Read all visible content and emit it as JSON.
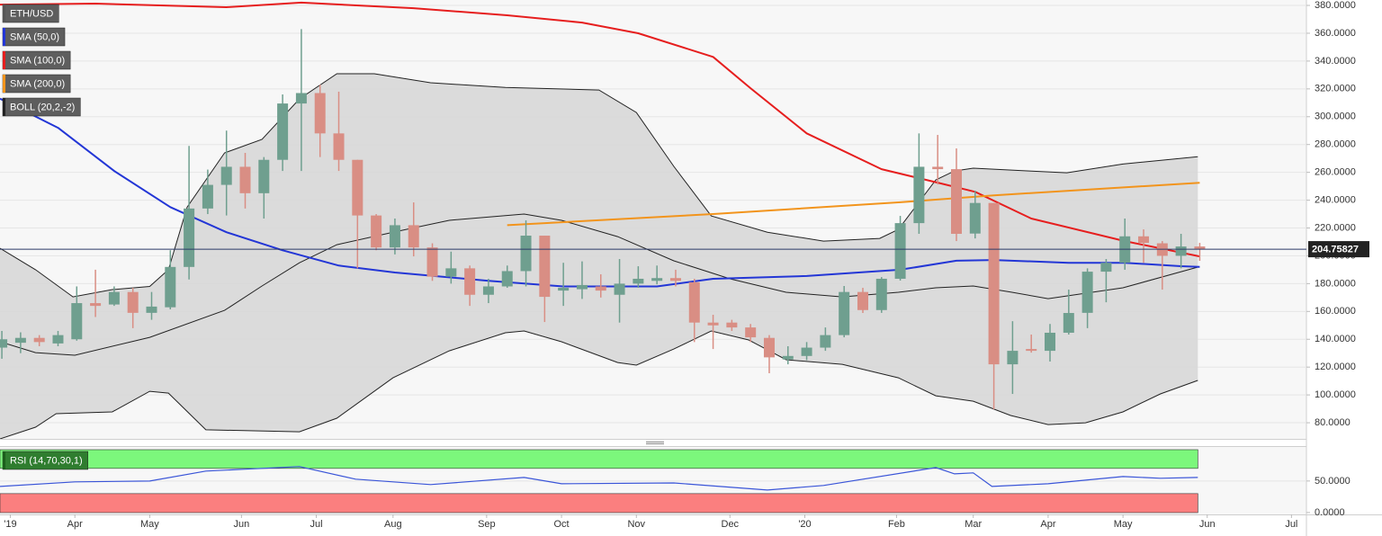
{
  "chart_data": [
    {
      "type": "candlestick",
      "xlim": [
        -0.1,
        69.7
      ],
      "ylim": [
        68.4,
        383.9
      ],
      "yticks": [
        {
          "value": 80,
          "label": "80.0000"
        },
        {
          "value": 100,
          "label": "100.0000"
        },
        {
          "value": 120,
          "label": "120.0000"
        },
        {
          "value": 140,
          "label": "140.0000"
        },
        {
          "value": 160,
          "label": "160.0000"
        },
        {
          "value": 180,
          "label": "180.0000"
        },
        {
          "value": 200,
          "label": "200.0000"
        },
        {
          "value": 220,
          "label": "220.0000"
        },
        {
          "value": 240,
          "label": "240.0000"
        },
        {
          "value": 260,
          "label": "260.0000"
        },
        {
          "value": 280,
          "label": "280.0000"
        },
        {
          "value": 300,
          "label": "300.0000"
        },
        {
          "value": 320,
          "label": "320.0000"
        },
        {
          "value": 340,
          "label": "340.0000"
        },
        {
          "value": 360,
          "label": "360.0000"
        },
        {
          "value": 380,
          "label": "380.0000"
        }
      ],
      "grid": true,
      "series": [
        {
          "name": "ETH/USD",
          "type": "candlestick",
          "color": "#555555",
          "up_color": "#6f9f8f",
          "down_color": "#d98e84",
          "open": [
            134,
            137.5,
            141,
            137,
            140,
            166,
            165,
            174,
            159,
            163,
            192,
            234,
            251,
            264,
            245,
            269,
            309.5,
            317,
            288,
            269,
            229,
            206,
            222,
            206,
            185,
            191,
            172,
            178,
            189,
            214.5,
            175,
            176,
            178,
            172,
            180,
            182,
            184,
            181,
            152,
            152,
            148.5,
            141,
            125.5,
            128,
            134,
            143,
            174,
            161,
            183.5,
            223.5,
            264,
            262.3,
            216,
            238,
            122,
            133,
            131.7,
            144.7,
            159,
            188.6,
            195,
            214,
            209,
            200,
            206.7
          ],
          "high": [
            146,
            145,
            143,
            146,
            178,
            190,
            178,
            177,
            174,
            204,
            279,
            262,
            290,
            274,
            271,
            316,
            363,
            323,
            318,
            269,
            230,
            226.8,
            238.4,
            209,
            203,
            193,
            183.5,
            193,
            225.5,
            214.5,
            195,
            196,
            186.7,
            197.7,
            192.5,
            193,
            190,
            183.5,
            157.6,
            154,
            151,
            143,
            135,
            138,
            148.5,
            178.3,
            177,
            184.7,
            228.7,
            288,
            286.9,
            277.2,
            246.8,
            238,
            153,
            143.4,
            151,
            175.7,
            191,
            197.7,
            226.8,
            219,
            210.6,
            215.8,
            209.3
          ],
          "low": [
            126,
            130,
            135,
            135,
            139,
            156,
            164,
            148,
            154,
            161.5,
            183,
            230,
            229,
            234,
            226.8,
            261,
            261,
            271,
            261,
            191,
            204,
            201,
            199.6,
            182,
            180,
            164,
            166,
            177,
            178,
            152.4,
            164,
            169,
            170,
            152,
            177,
            179.5,
            178,
            138,
            133,
            146,
            138,
            115.6,
            122,
            125,
            131.7,
            141.4,
            158.9,
            159,
            182.2,
            215.8,
            251.3,
            210.6,
            212.5,
            89.7,
            100.7,
            130.4,
            124,
            143.4,
            148,
            166.6,
            190,
            195,
            175.7,
            191,
            196.4
          ],
          "close": [
            140,
            141,
            138,
            143,
            166,
            164,
            174,
            159,
            163.5,
            192,
            234,
            251,
            264,
            245,
            269,
            309.5,
            317,
            288,
            269,
            229,
            206,
            222,
            206,
            185,
            191,
            172,
            178,
            189,
            214.5,
            170.5,
            177,
            179,
            175,
            180,
            183.5,
            184,
            182,
            152,
            150,
            148.5,
            141.4,
            127,
            128,
            134,
            143,
            174,
            161,
            183.5,
            223.5,
            264,
            262.3,
            215.8,
            238,
            122,
            131.7,
            131.7,
            144.7,
            158.9,
            188.6,
            195,
            214,
            209.3,
            200,
            206.7,
            204.75827
          ]
        },
        {
          "name": "SMA (50,0)",
          "type": "line",
          "color": "#2336d6",
          "x": [
            -0.1,
            3,
            6,
            9,
            12,
            15,
            18,
            21,
            26,
            30,
            35,
            38,
            43,
            48,
            51,
            53,
            57,
            60,
            63,
            64
          ],
          "values": [
            313,
            292,
            261,
            235,
            217,
            204,
            193,
            188,
            182,
            178,
            178,
            183.5,
            185.5,
            190,
            196.5,
            197,
            195,
            195,
            192.5,
            192
          ]
        },
        {
          "name": "SMA (100,0)",
          "type": "line",
          "color": "#e61e1e",
          "x": [
            -0.1,
            5,
            12,
            16,
            22,
            27,
            31,
            34,
            38,
            40,
            43,
            47,
            50,
            52,
            55,
            60,
            64
          ],
          "values": [
            380.6,
            381.3,
            378.7,
            382,
            378,
            372.9,
            367.7,
            360,
            343,
            320.5,
            288,
            262.3,
            252.6,
            246,
            226.8,
            210.6,
            199.6
          ]
        },
        {
          "name": "SMA (200,0)",
          "type": "line",
          "color": "#f2941c",
          "x": [
            27,
            38,
            48,
            53,
            64
          ],
          "values": [
            222,
            230,
            238.5,
            243.5,
            252.5
          ]
        },
        {
          "name": "BOLL (20,2,-2)",
          "type": "bollinger",
          "color": "#222222",
          "fill": "#d6d6d6",
          "upper": {
            "x": [
              -0.1,
              1.8,
              3.8,
              5.9,
              7.9,
              8.9,
              9.9,
              11.9,
              13.9,
              15.9,
              17.9,
              19.9,
              22.9,
              26.9,
              31.9,
              33.9,
              35.9,
              37.9,
              40.9,
              43.9,
              46.9,
              47.9,
              49.9,
              50.9,
              51.9,
              54.9,
              56.9,
              59.9,
              63.9
            ],
            "values": [
              205.4,
              190,
              170.5,
              175.7,
              178,
              190,
              235,
              274,
              283.7,
              312.8,
              330.9,
              330.9,
              324.4,
              321,
              319.2,
              303,
              264.3,
              228.7,
              217,
              210.6,
              212.5,
              219,
              254.6,
              261,
              263,
              261,
              259.7,
              266,
              271.3
            ]
          },
          "middle": {
            "x": [
              -0.1,
              1.8,
              3.9,
              7.9,
              11.9,
              13.9,
              15.9,
              17.9,
              20.9,
              23.9,
              27.9,
              29.9,
              32.9,
              35.9,
              38.9,
              41.9,
              44.9,
              47.9,
              49.9,
              51.9,
              53.9,
              55.9,
              59.9,
              63.9
            ],
            "values": [
              138.2,
              130.4,
              128.5,
              141.4,
              160.8,
              178.3,
              195,
              208,
              217,
              225.5,
              230,
              225.5,
              213.8,
              196.4,
              183.5,
              173.8,
              170.5,
              173.8,
              177,
              178.3,
              174,
              169.2,
              177,
              191.9
            ]
          },
          "lower": {
            "x": [
              -0.1,
              1.8,
              2.9,
              5.9,
              7.9,
              8.9,
              10.9,
              15.9,
              17.9,
              20.9,
              23.9,
              26.9,
              27.9,
              29.9,
              32.9,
              33.9,
              35.9,
              37.9,
              39.9,
              41.9,
              44.9,
              47.9,
              49.9,
              51.9,
              53.9,
              55.9,
              57.9,
              59.9,
              61.9,
              63.9
            ],
            "values": [
              68.4,
              76.8,
              86.5,
              87.8,
              102.6,
              101.3,
              74.9,
              73.5,
              83.3,
              112.3,
              131.7,
              144.7,
              146,
              138.2,
              123.3,
              121.4,
              133,
              146,
              139.5,
              125.3,
              122,
              112.3,
              99.4,
              95.5,
              85.2,
              78.7,
              80,
              87.8,
              100.7,
              110.4
            ]
          }
        }
      ]
    },
    {
      "type": "line",
      "xlim": [
        -0.1,
        69.7
      ],
      "ylim": [
        -3,
        104
      ],
      "yticks": [
        {
          "value": 0,
          "label": "0.0000"
        },
        {
          "value": 50,
          "label": "50.0000"
        }
      ],
      "xticks": [
        {
          "value": 0.45,
          "label": "'19"
        },
        {
          "value": 3.9,
          "label": "Apr"
        },
        {
          "value": 7.9,
          "label": "May"
        },
        {
          "value": 12.8,
          "label": "Jun"
        },
        {
          "value": 16.8,
          "label": "Jul"
        },
        {
          "value": 20.9,
          "label": "Aug"
        },
        {
          "value": 25.9,
          "label": "Sep"
        },
        {
          "value": 29.9,
          "label": "Oct"
        },
        {
          "value": 33.9,
          "label": "Nov"
        },
        {
          "value": 38.9,
          "label": "Dec"
        },
        {
          "value": 42.9,
          "label": "'20"
        },
        {
          "value": 47.8,
          "label": "Feb"
        },
        {
          "value": 51.9,
          "label": "Mar"
        },
        {
          "value": 55.9,
          "label": "Apr"
        },
        {
          "value": 59.9,
          "label": "May"
        },
        {
          "value": 64.4,
          "label": "Jun"
        },
        {
          "value": 68.9,
          "label": "Jul"
        }
      ],
      "overbought": 70,
      "oversold": 30,
      "overbought_color": "#7cf77c",
      "oversold_color": "#fb7f7f",
      "series": [
        {
          "name": "RSI (14,70,30,1)",
          "type": "line",
          "color": "#3a55d8",
          "x": [
            -0.1,
            3.9,
            7.9,
            10.9,
            12.9,
            15.9,
            18.9,
            22.9,
            27.9,
            29.9,
            35.9,
            40.9,
            43.9,
            49.9,
            50.9,
            51.9,
            52.9,
            55.9,
            59.9,
            61.9,
            63.9
          ],
          "values": [
            41.4,
            48.6,
            50,
            65.7,
            68.6,
            72.9,
            52.9,
            44.3,
            55.7,
            45.7,
            47,
            35.7,
            42.9,
            71.4,
            61.4,
            62.9,
            41.4,
            45.7,
            57,
            54.3,
            55.7
          ]
        }
      ]
    }
  ]
}
